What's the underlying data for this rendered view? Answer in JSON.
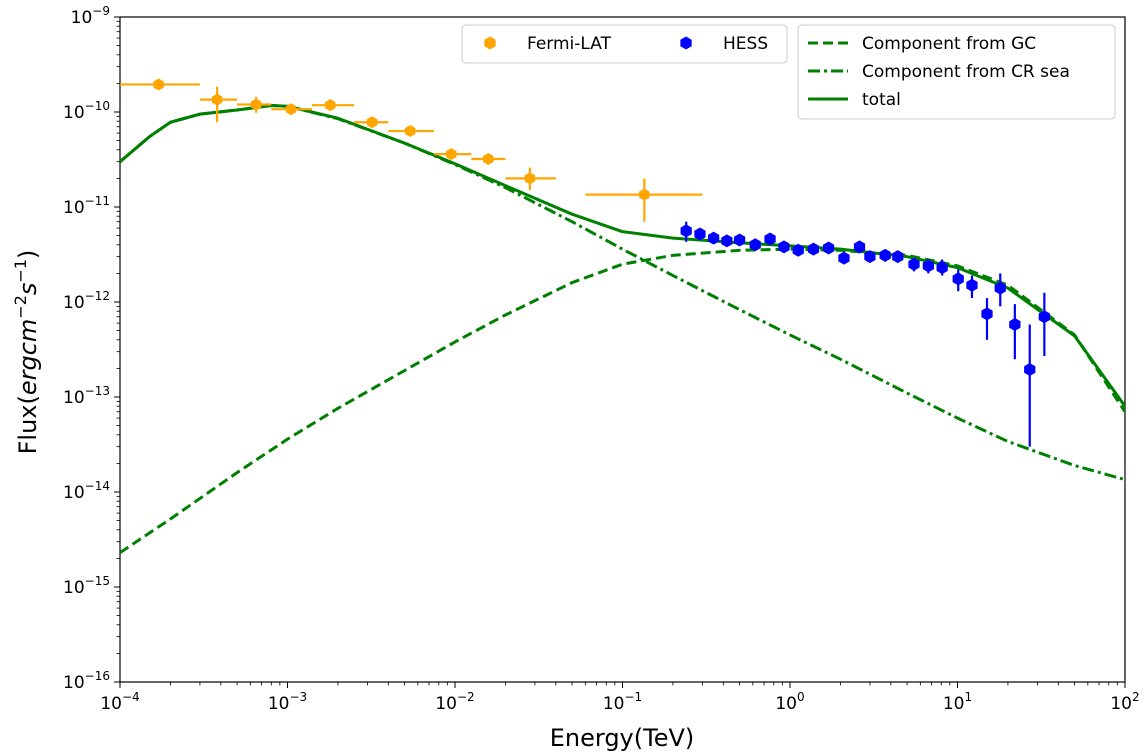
{
  "chart_data": {
    "type": "scatter",
    "xlabel": "Energy(TeV)",
    "ylabel_prefix": "Flux(",
    "ylabel_math": "ergcm",
    "ylabel_exp1": "−2",
    "ylabel_mid": "s",
    "ylabel_exp2": "−1",
    "ylabel_suffix": ")",
    "xscale": "log",
    "yscale": "log",
    "xlim": [
      0.0001,
      100
    ],
    "ylim": [
      1e-16,
      1e-09
    ],
    "x_ticks": [
      {
        "base": "10",
        "exp": "−4",
        "value": 0.0001
      },
      {
        "base": "10",
        "exp": "−3",
        "value": 0.001
      },
      {
        "base": "10",
        "exp": "−2",
        "value": 0.01
      },
      {
        "base": "10",
        "exp": "−1",
        "value": 0.1
      },
      {
        "base": "10",
        "exp": "0",
        "value": 1
      },
      {
        "base": "10",
        "exp": "1",
        "value": 10
      },
      {
        "base": "10",
        "exp": "2",
        "value": 100
      }
    ],
    "y_ticks": [
      {
        "base": "10",
        "exp": "−16",
        "value": 1e-16
      },
      {
        "base": "10",
        "exp": "−15",
        "value": 1e-15
      },
      {
        "base": "10",
        "exp": "−14",
        "value": 1e-14
      },
      {
        "base": "10",
        "exp": "−13",
        "value": 1e-13
      },
      {
        "base": "10",
        "exp": "−12",
        "value": 1e-12
      },
      {
        "base": "10",
        "exp": "−11",
        "value": 1e-11
      },
      {
        "base": "10",
        "exp": "−10",
        "value": 1e-10
      },
      {
        "base": "10",
        "exp": "−9",
        "value": 1e-09
      }
    ],
    "grid": false,
    "legend_points": {
      "placement": "top-center",
      "entries": [
        {
          "label": "Fermi-LAT",
          "color": "#ffa500",
          "marker": "hexagon"
        },
        {
          "label": "HESS",
          "color": "#0000ff",
          "marker": "hexagon"
        }
      ]
    },
    "legend_lines": {
      "placement": "top-right",
      "entries": [
        {
          "label": "Component from GC",
          "style": "dashed",
          "color": "#008000"
        },
        {
          "label": "Component from CR sea",
          "style": "dashdot",
          "color": "#008000"
        },
        {
          "label": "total",
          "style": "solid",
          "color": "#008000"
        }
      ]
    },
    "series": [
      {
        "name": "Fermi-LAT",
        "kind": "points",
        "color": "#ffa500",
        "points": [
          {
            "x": 0.00017,
            "y": 1.95e-10,
            "xlo": 0.0001,
            "xhi": 0.0003,
            "ylo": 1.95e-10,
            "yhi": 1.95e-10
          },
          {
            "x": 0.00038,
            "y": 1.35e-10,
            "xlo": 0.0003,
            "xhi": 0.0005,
            "ylo": 7.8e-11,
            "yhi": 1.85e-10
          },
          {
            "x": 0.00065,
            "y": 1.2e-10,
            "xlo": 0.0005,
            "xhi": 0.0008,
            "ylo": 9.8e-11,
            "yhi": 1.45e-10
          },
          {
            "x": 0.00105,
            "y": 1.07e-10,
            "xlo": 0.0008,
            "xhi": 0.0014,
            "ylo": 1.07e-10,
            "yhi": 1.07e-10
          },
          {
            "x": 0.0018,
            "y": 1.18e-10,
            "xlo": 0.0014,
            "xhi": 0.0025,
            "ylo": 1.18e-10,
            "yhi": 1.18e-10
          },
          {
            "x": 0.0032,
            "y": 7.8e-11,
            "xlo": 0.0025,
            "xhi": 0.004,
            "ylo": 7.8e-11,
            "yhi": 7.8e-11
          },
          {
            "x": 0.0054,
            "y": 6.3e-11,
            "xlo": 0.004,
            "xhi": 0.0075,
            "ylo": 6.3e-11,
            "yhi": 6.3e-11
          },
          {
            "x": 0.0095,
            "y": 3.6e-11,
            "xlo": 0.0075,
            "xhi": 0.0125,
            "ylo": 3.6e-11,
            "yhi": 3.6e-11
          },
          {
            "x": 0.0158,
            "y": 3.2e-11,
            "xlo": 0.0125,
            "xhi": 0.02,
            "ylo": 3.2e-11,
            "yhi": 3.2e-11
          },
          {
            "x": 0.028,
            "y": 2e-11,
            "xlo": 0.02,
            "xhi": 0.04,
            "ylo": 1.5e-11,
            "yhi": 2.6e-11
          },
          {
            "x": 0.135,
            "y": 1.35e-11,
            "xlo": 0.06,
            "xhi": 0.3,
            "ylo": 7e-12,
            "yhi": 2e-11
          }
        ]
      },
      {
        "name": "HESS",
        "kind": "points",
        "color": "#0000ff",
        "points": [
          {
            "x": 0.24,
            "y": 5.6e-12,
            "ylo": 4.3e-12,
            "yhi": 7e-12
          },
          {
            "x": 0.29,
            "y": 5.2e-12,
            "ylo": 4.8e-12,
            "yhi": 5.6e-12
          },
          {
            "x": 0.35,
            "y": 4.7e-12,
            "ylo": 4.4e-12,
            "yhi": 5e-12
          },
          {
            "x": 0.42,
            "y": 4.4e-12,
            "ylo": 4.1e-12,
            "yhi": 4.7e-12
          },
          {
            "x": 0.5,
            "y": 4.5e-12,
            "ylo": 4.2e-12,
            "yhi": 4.8e-12
          },
          {
            "x": 0.62,
            "y": 4e-12,
            "ylo": 3.7e-12,
            "yhi": 4.3e-12
          },
          {
            "x": 0.76,
            "y": 4.6e-12,
            "ylo": 4.3e-12,
            "yhi": 4.9e-12
          },
          {
            "x": 0.92,
            "y": 3.8e-12,
            "ylo": 3.5e-12,
            "yhi": 4.1e-12
          },
          {
            "x": 1.12,
            "y": 3.5e-12,
            "ylo": 3.2e-12,
            "yhi": 3.8e-12
          },
          {
            "x": 1.38,
            "y": 3.6e-12,
            "ylo": 3.3e-12,
            "yhi": 3.9e-12
          },
          {
            "x": 1.7,
            "y": 3.7e-12,
            "ylo": 3.4e-12,
            "yhi": 4e-12
          },
          {
            "x": 2.1,
            "y": 2.9e-12,
            "ylo": 2.6e-12,
            "yhi": 3.2e-12
          },
          {
            "x": 2.6,
            "y": 3.8e-12,
            "ylo": 3.4e-12,
            "yhi": 4.2e-12
          },
          {
            "x": 3.0,
            "y": 3e-12,
            "ylo": 2.7e-12,
            "yhi": 3.3e-12
          },
          {
            "x": 3.7,
            "y": 3.1e-12,
            "ylo": 2.7e-12,
            "yhi": 3.5e-12
          },
          {
            "x": 4.4,
            "y": 3e-12,
            "ylo": 2.6e-12,
            "yhi": 3.4e-12
          },
          {
            "x": 5.5,
            "y": 2.5e-12,
            "ylo": 2.1e-12,
            "yhi": 2.9e-12
          },
          {
            "x": 6.7,
            "y": 2.4e-12,
            "ylo": 2e-12,
            "yhi": 2.8e-12
          },
          {
            "x": 8.1,
            "y": 2.3e-12,
            "ylo": 1.9e-12,
            "yhi": 2.8e-12
          },
          {
            "x": 10.1,
            "y": 1.75e-12,
            "ylo": 1.3e-12,
            "yhi": 2.2e-12
          },
          {
            "x": 12.2,
            "y": 1.5e-12,
            "ylo": 1.1e-12,
            "yhi": 1.9e-12
          },
          {
            "x": 15.0,
            "y": 7.5e-13,
            "ylo": 4e-13,
            "yhi": 1.1e-12
          },
          {
            "x": 18.0,
            "y": 1.4e-12,
            "ylo": 9e-13,
            "yhi": 2e-12
          },
          {
            "x": 22.0,
            "y": 5.8e-13,
            "ylo": 2.5e-13,
            "yhi": 9.5e-13
          },
          {
            "x": 27.0,
            "y": 1.95e-13,
            "ylo": 3e-14,
            "yhi": 5.8e-13
          },
          {
            "x": 33.0,
            "y": 7e-13,
            "ylo": 2.7e-13,
            "yhi": 1.25e-12
          }
        ]
      },
      {
        "name": "Component from GC",
        "kind": "line",
        "style": "dashed",
        "color": "#008000",
        "x": [
          0.0001,
          0.0002,
          0.0005,
          0.001,
          0.002,
          0.005,
          0.01,
          0.02,
          0.05,
          0.1,
          0.2,
          0.5,
          1,
          2,
          5,
          10,
          20,
          50,
          100
        ],
        "y": [
          2.3e-15,
          5.2e-15,
          1.6e-14,
          3.6e-14,
          7.6e-14,
          1.9e-13,
          3.8e-13,
          7.3e-13,
          1.6e-12,
          2.5e-12,
          3.1e-12,
          3.5e-12,
          3.6e-12,
          3.5e-12,
          3.1e-12,
          2.4e-12,
          1.5e-12,
          4.5e-13,
          7e-14
        ]
      },
      {
        "name": "Component from CR sea",
        "kind": "line",
        "style": "dashdot",
        "color": "#008000",
        "x": [
          0.0001,
          0.00015,
          0.0002,
          0.0003,
          0.0005,
          0.0008,
          0.001,
          0.002,
          0.005,
          0.01,
          0.02,
          0.05,
          0.1,
          0.2,
          0.5,
          1,
          2,
          5,
          10,
          20,
          50,
          100
        ],
        "y": [
          3e-11,
          5.5e-11,
          7.8e-11,
          9.5e-11,
          1.05e-10,
          1.17e-10,
          1.15e-10,
          8.5e-11,
          4.7e-11,
          2.8e-11,
          1.6e-11,
          7e-12,
          3.6e-12,
          1.9e-12,
          8.3e-13,
          4.5e-13,
          2.5e-13,
          1.1e-13,
          6e-14,
          3.4e-14,
          1.9e-14,
          1.35e-14
        ]
      },
      {
        "name": "total",
        "kind": "line",
        "style": "solid",
        "color": "#008000",
        "x": [
          0.0001,
          0.00015,
          0.0002,
          0.0003,
          0.0005,
          0.0008,
          0.001,
          0.002,
          0.005,
          0.01,
          0.02,
          0.05,
          0.1,
          0.2,
          0.5,
          1,
          2,
          5,
          10,
          20,
          50,
          100
        ],
        "y": [
          3e-11,
          5.5e-11,
          7.8e-11,
          9.5e-11,
          1.05e-10,
          1.17e-10,
          1.15e-10,
          8.6e-11,
          4.7e-11,
          2.85e-11,
          1.68e-11,
          8.4e-12,
          5.5e-12,
          4.7e-12,
          4.2e-12,
          3.9e-12,
          3.6e-12,
          3e-12,
          2.3e-12,
          1.4e-12,
          4.4e-13,
          8e-14
        ]
      }
    ]
  }
}
